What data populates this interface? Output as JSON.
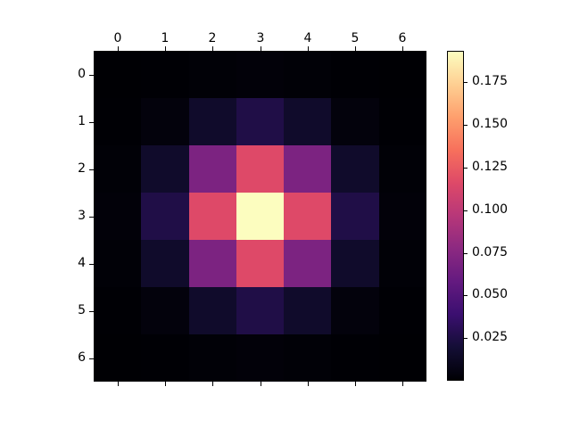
{
  "figure": {
    "background": "#ffffff",
    "tick_color": "#000000",
    "label_color": "#000000"
  },
  "chart_data": {
    "type": "heatmap",
    "title": "",
    "xlabel": "",
    "ylabel": "",
    "x_ticks": [
      "0",
      "1",
      "2",
      "3",
      "4",
      "5",
      "6"
    ],
    "y_ticks": [
      "0",
      "1",
      "2",
      "3",
      "4",
      "5",
      "6"
    ],
    "values": [
      [
        2e-05,
        0.00025,
        0.00117,
        0.00195,
        0.00117,
        0.00025,
        2e-05
      ],
      [
        0.00025,
        0.00325,
        0.01505,
        0.02508,
        0.01505,
        0.00325,
        0.00025
      ],
      [
        0.00117,
        0.01505,
        0.06966,
        0.1161,
        0.06966,
        0.01505,
        0.00117
      ],
      [
        0.00195,
        0.02508,
        0.1161,
        0.1935,
        0.1161,
        0.02508,
        0.00195
      ],
      [
        0.00117,
        0.01505,
        0.06966,
        0.1161,
        0.06966,
        0.01505,
        0.00117
      ],
      [
        0.00025,
        0.00325,
        0.01505,
        0.02508,
        0.01505,
        0.00325,
        0.00025
      ],
      [
        2e-05,
        0.00025,
        0.00117,
        0.00195,
        0.00117,
        0.00025,
        2e-05
      ]
    ],
    "vmin": 0.0,
    "vmax": 0.1935,
    "colormap": "magma",
    "colormap_stops": [
      {
        "t": 0.0,
        "color": "#000004"
      },
      {
        "t": 0.1,
        "color": "#140e36"
      },
      {
        "t": 0.2,
        "color": "#3b0f70"
      },
      {
        "t": 0.3,
        "color": "#641a80"
      },
      {
        "t": 0.4,
        "color": "#8c2981"
      },
      {
        "t": 0.5,
        "color": "#b73779"
      },
      {
        "t": 0.6,
        "color": "#de4968"
      },
      {
        "t": 0.7,
        "color": "#f7705c"
      },
      {
        "t": 0.8,
        "color": "#fe9f6d"
      },
      {
        "t": 0.9,
        "color": "#fecf92"
      },
      {
        "t": 1.0,
        "color": "#fcfdbf"
      }
    ],
    "colorbar": {
      "position": "right",
      "ticks": [
        0.175,
        0.15,
        0.125,
        0.1,
        0.075,
        0.05,
        0.025
      ],
      "tick_labels": [
        "0.175",
        "0.150",
        "0.125",
        "0.100",
        "0.075",
        "0.050",
        "0.025"
      ]
    },
    "grid": false,
    "legend": null
  }
}
